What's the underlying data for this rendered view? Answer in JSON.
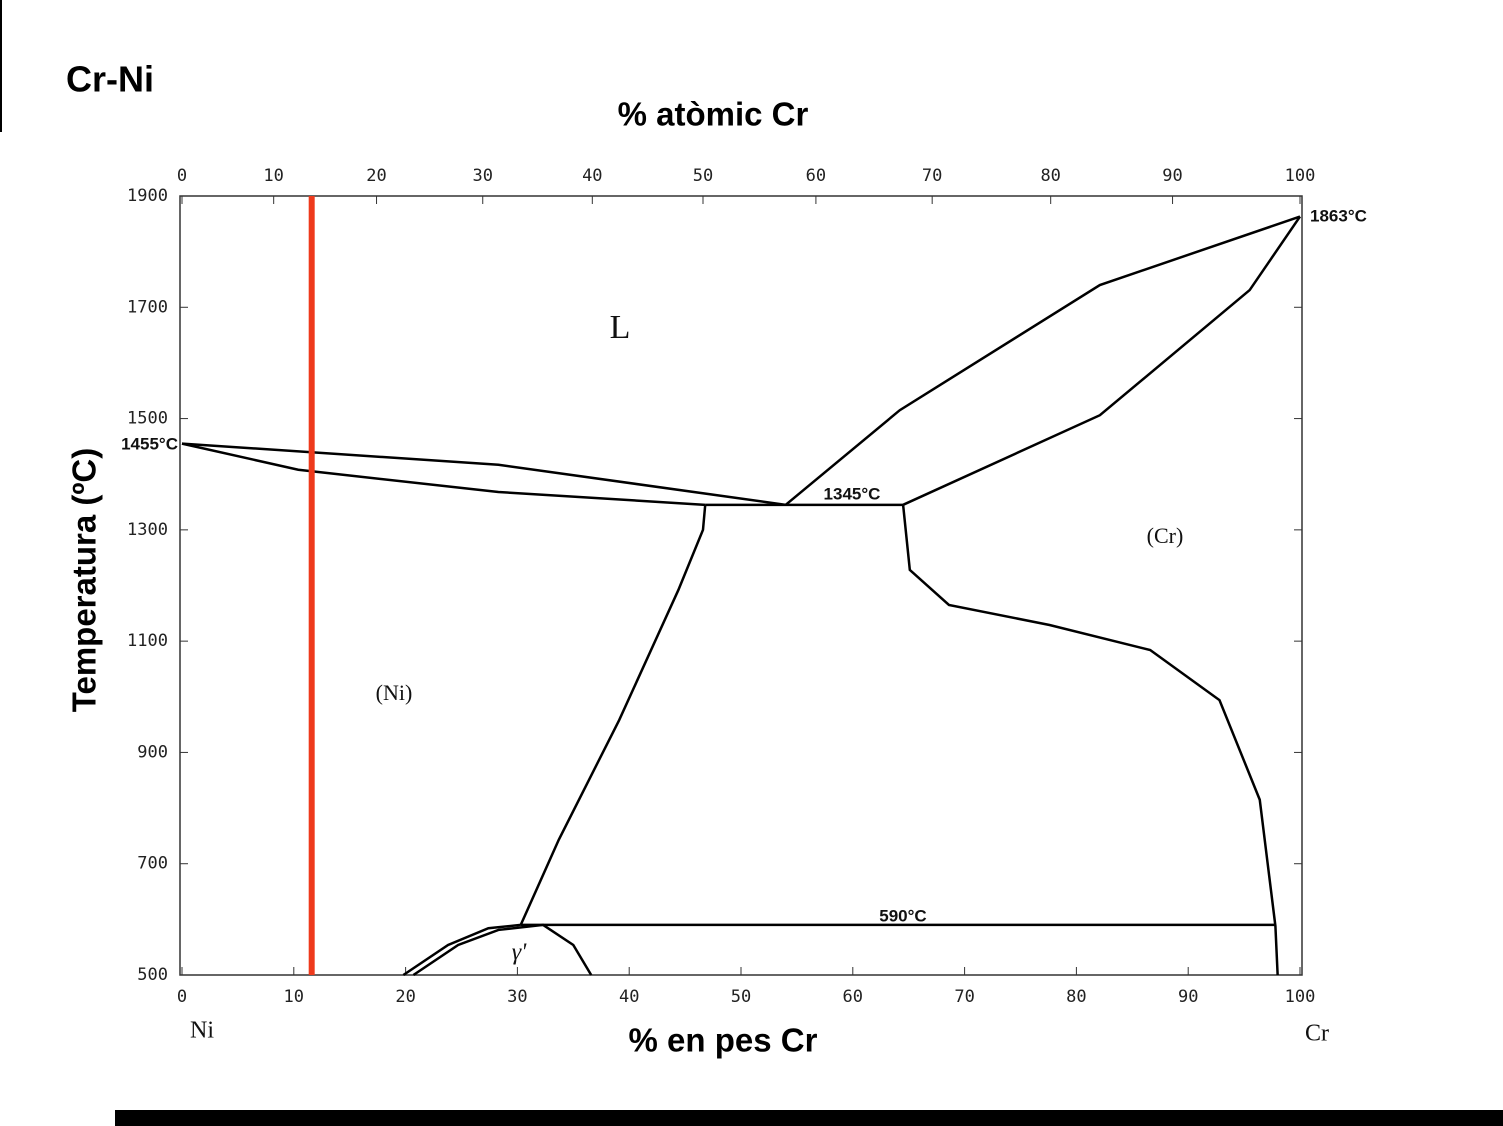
{
  "chart_data": {
    "type": "line",
    "title": "Cr-Ni",
    "x2_label": "% atòmic Cr",
    "x_label": "% en pes Cr",
    "y_label": "Temperatura (ºC)",
    "xlim": [
      0,
      100
    ],
    "ylim": [
      500,
      1900
    ],
    "xticks": [
      0,
      10,
      20,
      30,
      40,
      50,
      60,
      70,
      80,
      90,
      100
    ],
    "x2ticks": [
      0,
      {
        "value": 8.2,
        "label": "10"
      },
      {
        "value": 17.4,
        "label": "20"
      },
      {
        "value": 26.9,
        "label": "30"
      },
      {
        "value": 36.7,
        "label": "40"
      },
      {
        "value": 46.6,
        "label": "50"
      },
      {
        "value": 56.7,
        "label": "60"
      },
      {
        "value": 67.1,
        "label": "70"
      },
      {
        "value": 77.7,
        "label": "80"
      },
      {
        "value": 88.6,
        "label": "90"
      },
      100
    ],
    "yticks": [
      500,
      700,
      900,
      1100,
      1300,
      1500,
      1700,
      1900
    ],
    "grid": false,
    "series": [
      {
        "color": "#000000",
        "x": [
          0,
          28.3,
          54
        ],
        "values": [
          1455,
          1417,
          1345
        ]
      },
      {
        "color": "#000000",
        "x": [
          0,
          10.4,
          28.3,
          46.8
        ],
        "values": [
          1455,
          1408,
          1368,
          1345
        ]
      },
      {
        "color": "#000000",
        "x": [
          54,
          64.2,
          82.1,
          100
        ],
        "values": [
          1345,
          1515,
          1740,
          1863
        ]
      },
      {
        "color": "#000000",
        "x": [
          64.5,
          82.1,
          95.5,
          100
        ],
        "values": [
          1345,
          1506,
          1731,
          1863
        ]
      },
      {
        "color": "#000000",
        "x": [
          46.8,
          64.5
        ],
        "values": [
          1345,
          1345
        ]
      },
      {
        "color": "#000000",
        "x": [
          46.8,
          46.6,
          44.4,
          39.1,
          33.7,
          30.3
        ],
        "values": [
          1345,
          1300,
          1192,
          958,
          743,
          590
        ]
      },
      {
        "color": "#000000",
        "x": [
          64.5,
          65.1,
          68.6,
          77.6,
          86.6,
          92.8,
          96.4,
          97.8,
          98.0
        ],
        "values": [
          1345,
          1228,
          1165,
          1129,
          1084,
          994,
          815,
          588,
          500
        ]
      },
      {
        "color": "#000000",
        "x": [
          30.3,
          97.8
        ],
        "values": [
          590,
          590
        ]
      },
      {
        "color": "#000000",
        "x": [
          19.8,
          23.8,
          27.4,
          30.3
        ],
        "values": [
          500,
          554,
          584,
          590
        ]
      },
      {
        "color": "#000000",
        "x": [
          20.7,
          24.7,
          28.3,
          32.3,
          35.0,
          36.6
        ],
        "values": [
          500,
          554,
          581,
          590,
          554,
          500
        ]
      },
      {
        "color": "#ee3a1c",
        "x": [
          11.6,
          11.6
        ],
        "values": [
          500,
          1900
        ]
      }
    ],
    "annotations": [
      "L",
      "(Ni)",
      "(Cr)",
      "γ'",
      "1345°C",
      "590°C",
      "1863°C",
      "1455°C"
    ],
    "end_labels": [
      "Ni",
      "Cr"
    ]
  }
}
